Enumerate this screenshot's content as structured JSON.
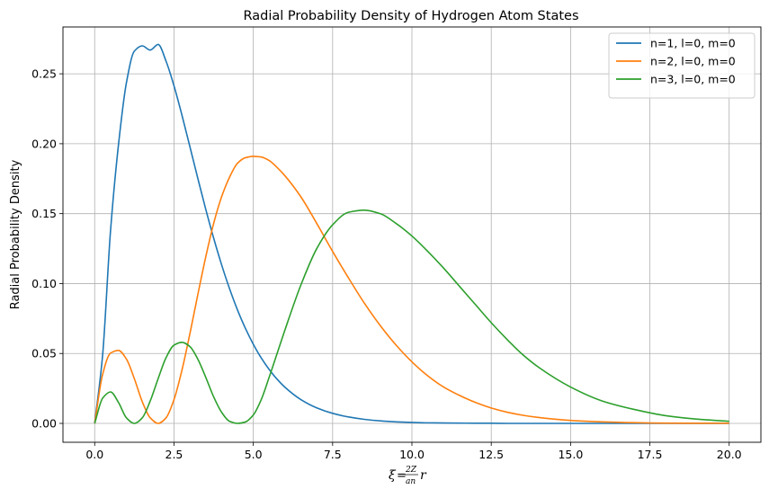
{
  "chart_data": {
    "type": "line",
    "title": "Radial Probability Density of Hydrogen Atom States",
    "ylabel": "Radial Probability Density",
    "xlabel": {
      "symbol": "ξ",
      "equals": "=",
      "frac_num": "2Z",
      "frac_den": "an",
      "var": "r"
    },
    "xlim": [
      -1.0,
      21.0
    ],
    "ylim": [
      -0.0135,
      0.2835
    ],
    "x_ticks": [
      0,
      2.5,
      5,
      7.5,
      10,
      12.5,
      15,
      17.5,
      20
    ],
    "x_tick_labels": [
      "0.0",
      "2.5",
      "5.0",
      "7.5",
      "10.0",
      "12.5",
      "15.0",
      "17.5",
      "20.0"
    ],
    "y_ticks": [
      0,
      0.05,
      0.1,
      0.15,
      0.2,
      0.25
    ],
    "y_tick_labels": [
      "0.00",
      "0.05",
      "0.10",
      "0.15",
      "0.20",
      "0.25"
    ],
    "grid": true,
    "legend_position": "upper-right",
    "x": [
      0,
      0.25,
      0.5,
      0.75,
      1,
      1.25,
      1.5,
      1.75,
      2,
      2.25,
      2.5,
      2.75,
      3,
      3.25,
      3.5,
      3.75,
      4,
      4.25,
      4.5,
      4.75,
      5,
      5.25,
      5.5,
      5.75,
      6,
      6.5,
      7,
      7.5,
      8,
      8.5,
      9,
      9.5,
      10,
      10.5,
      11,
      11.5,
      12,
      12.5,
      13,
      13.5,
      14,
      15,
      16,
      17,
      18,
      19,
      20
    ],
    "series": [
      {
        "name": "n=1, l=0, m=0",
        "color": "#1f77b4",
        "values": [
          0,
          0.0487,
          0.1379,
          0.1993,
          0.2436,
          0.2662,
          0.27,
          0.267,
          0.271,
          0.259,
          0.2414,
          0.2205,
          0.198,
          0.1753,
          0.1532,
          0.1325,
          0.1135,
          0.0964,
          0.0812,
          0.068,
          0.0566,
          0.0468,
          0.0386,
          0.0316,
          0.0258,
          0.017,
          0.0111,
          0.0072,
          0.0046,
          0.0029,
          0.0018,
          0.0011,
          0.0007,
          0.0004,
          0.0003,
          0.0002,
          0.0001,
          0.0001,
          0,
          0,
          0,
          0,
          0,
          0,
          0,
          0,
          0
        ]
      },
      {
        "name": "n=2, l=0, m=0",
        "color": "#ff7f0e",
        "values": [
          0,
          0.035,
          0.0503,
          0.0522,
          0.046,
          0.032,
          0.0155,
          0.004,
          0.0,
          0.004,
          0.017,
          0.038,
          0.064,
          0.092,
          0.119,
          0.143,
          0.162,
          0.176,
          0.186,
          0.19,
          0.191,
          0.1905,
          0.188,
          0.183,
          0.177,
          0.162,
          0.143,
          0.123,
          0.104,
          0.086,
          0.07,
          0.056,
          0.044,
          0.034,
          0.026,
          0.02,
          0.015,
          0.011,
          0.008,
          0.0058,
          0.0042,
          0.0021,
          0.0011,
          0.0005,
          0.0002,
          0.0001,
          0.0001
        ]
      },
      {
        "name": "n=3, l=0, m=0",
        "color": "#2ca02c",
        "values": [
          0,
          0.018,
          0.0225,
          0.015,
          0.004,
          0.0,
          0.004,
          0.016,
          0.032,
          0.047,
          0.056,
          0.058,
          0.055,
          0.046,
          0.033,
          0.019,
          0.008,
          0.0015,
          0.0,
          0.001,
          0.006,
          0.017,
          0.033,
          0.05,
          0.067,
          0.099,
          0.125,
          0.142,
          0.151,
          0.1525,
          0.15,
          0.143,
          0.134,
          0.123,
          0.111,
          0.098,
          0.085,
          0.072,
          0.06,
          0.049,
          0.04,
          0.026,
          0.016,
          0.01,
          0.0055,
          0.003,
          0.0015
        ]
      }
    ]
  }
}
